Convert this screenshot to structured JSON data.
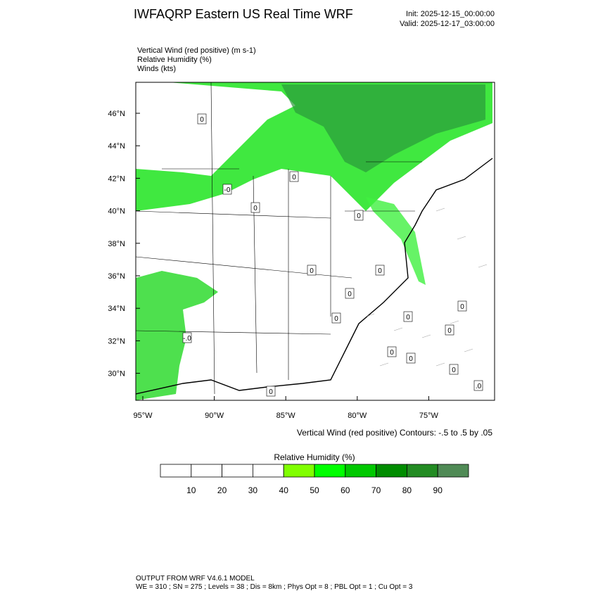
{
  "header": {
    "title": "IWFAQRP Eastern US Real Time WRF",
    "init": "Init: 2025-12-15_00:00:00",
    "valid": "Valid: 2025-12-17_03:00:00"
  },
  "fields": [
    "Vertical Wind (red positive)   (m s-1)",
    "Relative Humidity   (%)",
    "Winds   (kts)"
  ],
  "map": {
    "lat_labels": [
      "46°N",
      "44°N",
      "42°N",
      "40°N",
      "38°N",
      "36°N",
      "34°N",
      "32°N",
      "30°N"
    ],
    "lon_labels": [
      "95°W",
      "90°W",
      "85°W",
      "80°W",
      "75°W"
    ],
    "contour_labels": [
      "0",
      "0",
      "0",
      "0",
      "0",
      "0",
      "0",
      "0",
      "0",
      "0",
      "0",
      "-.0",
      "0",
      "0",
      "0",
      "0",
      ".0",
      "-0"
    ],
    "contour_info": "Vertical Wind (red positive) Contours: -.5 to .5 by .05"
  },
  "colorbar": {
    "title": "Relative Humidity   (%)",
    "ticks": [
      10,
      20,
      30,
      40,
      50,
      60,
      70,
      80,
      90
    ],
    "colors": [
      "#ffffff",
      "#ffffff",
      "#ffffff",
      "#ffffff",
      "#80ff00",
      "#00ff00",
      "#00c800",
      "#008c00",
      "#228b22",
      "#4f8a55"
    ]
  },
  "footer": {
    "line1": "OUTPUT FROM WRF V4.6.1 MODEL",
    "line2": "WE = 310 ; SN = 275 ; Levels = 38 ; Dis = 8km ; Phys Opt = 8 ; PBL Opt = 1 ; Cu Opt = 3"
  }
}
